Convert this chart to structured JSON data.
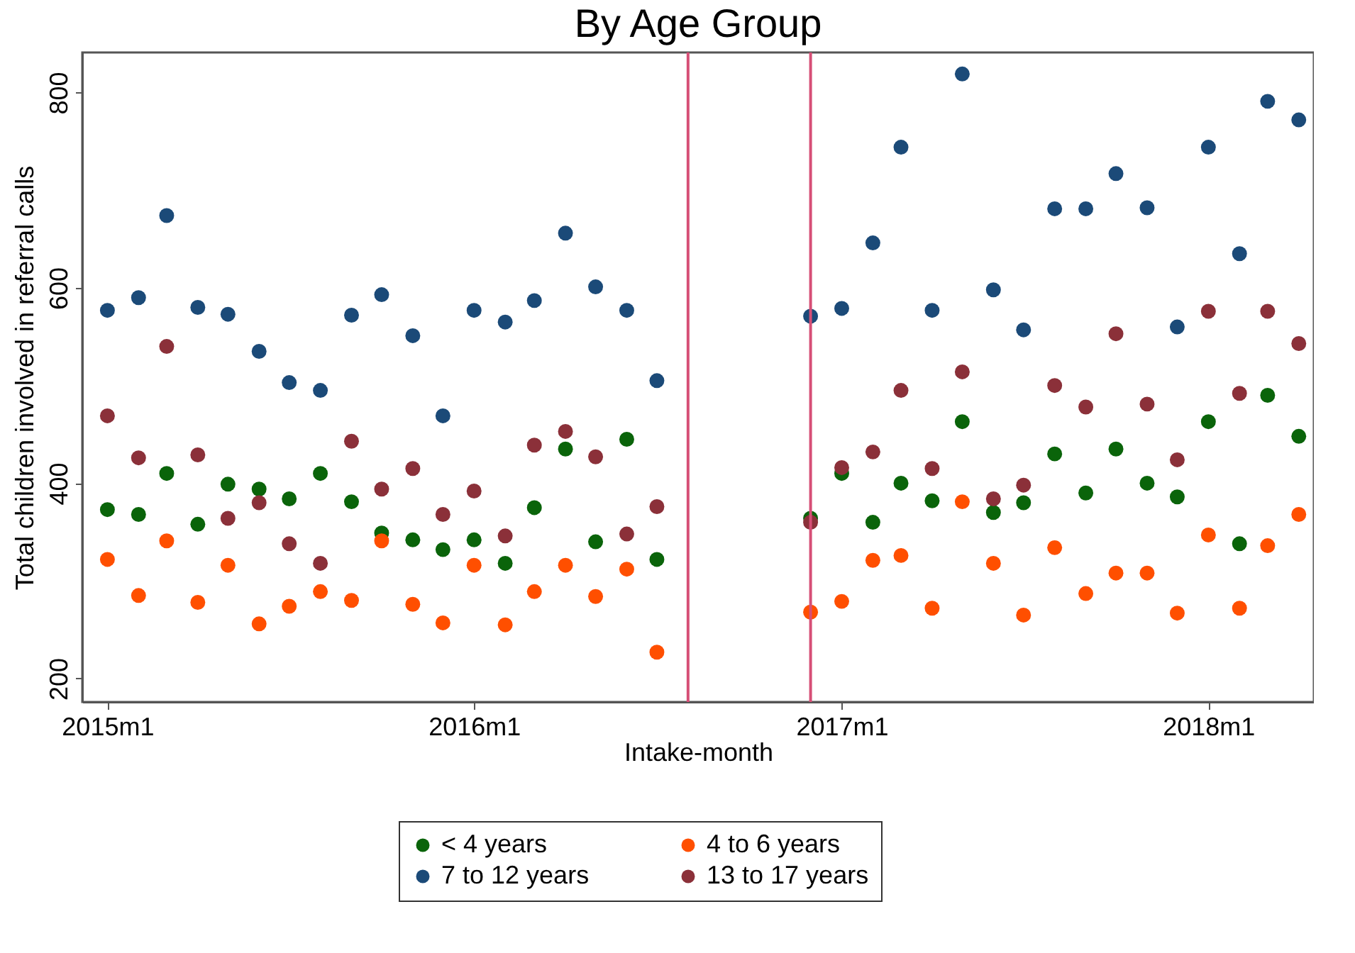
{
  "chart_data": {
    "type": "scatter",
    "title": "By Age Group",
    "xlabel": "Intake-month",
    "ylabel": "Total children involved in referral calls",
    "x": [
      "2015-01",
      "2015-02",
      "2015-03",
      "2015-04",
      "2015-05",
      "2015-06",
      "2015-07",
      "2015-08",
      "2015-09",
      "2015-10",
      "2015-11",
      "2015-12",
      "2016-01",
      "2016-02",
      "2016-03",
      "2016-04",
      "2016-05",
      "2016-06",
      "2016-07",
      "2016-12",
      "2017-01",
      "2017-02",
      "2017-03",
      "2017-04",
      "2017-05",
      "2017-06",
      "2017-07",
      "2017-08",
      "2017-09",
      "2017-10",
      "2017-11",
      "2017-12",
      "2018-01",
      "2018-02",
      "2018-03",
      "2018-04"
    ],
    "series": [
      {
        "name": "< 4 years",
        "color": "#0a640a",
        "values": [
          373,
          368,
          410,
          358,
          399,
          394,
          384,
          410,
          381,
          349,
          342,
          332,
          342,
          318,
          375,
          435,
          340,
          445,
          322,
          364,
          410,
          360,
          400,
          382,
          463,
          370,
          380,
          430,
          390,
          435,
          400,
          386,
          463,
          338,
          490,
          448
        ]
      },
      {
        "name": "4 to 6 years",
        "color": "#ff4f00",
        "values": [
          322,
          285,
          341,
          278,
          316,
          256,
          274,
          289,
          280,
          341,
          276,
          257,
          316,
          255,
          289,
          316,
          284,
          312,
          227,
          268,
          279,
          321,
          326,
          272,
          381,
          318,
          265,
          334,
          287,
          308,
          308,
          267,
          347,
          272,
          336,
          368
        ]
      },
      {
        "name": "7 to 12 years",
        "color": "#1b4a78",
        "values": [
          577,
          590,
          674,
          580,
          573,
          535,
          503,
          495,
          572,
          593,
          551,
          469,
          577,
          565,
          587,
          656,
          601,
          577,
          505,
          571,
          579,
          646,
          744,
          577,
          819,
          598,
          557,
          681,
          681,
          717,
          682,
          560,
          744,
          635,
          791,
          772
        ]
      },
      {
        "name": "13 to 17 years",
        "color": "#8b3039",
        "values": [
          469,
          426,
          540,
          429,
          364,
          380,
          338,
          318,
          443,
          394,
          415,
          368,
          392,
          346,
          439,
          453,
          427,
          348,
          376,
          360,
          416,
          432,
          495,
          415,
          514,
          384,
          398,
          500,
          478,
          553,
          481,
          424,
          576,
          492,
          576,
          543
        ]
      }
    ],
    "xlim": [
      "2014-12-07",
      "2018-04-16"
    ],
    "xticks": [
      {
        "value": "2015-01",
        "label": "2015m1"
      },
      {
        "value": "2016-01",
        "label": "2016m1"
      },
      {
        "value": "2017-01",
        "label": "2017m1"
      },
      {
        "value": "2018-01",
        "label": "2018m1"
      }
    ],
    "ylim": [
      176,
      841
    ],
    "yticks": [
      200,
      400,
      600,
      800
    ],
    "ref_lines": [
      {
        "axis": "x",
        "value": "2016-08",
        "color": "#d64f76"
      },
      {
        "axis": "x",
        "value": "2016-12",
        "color": "#d64f76"
      }
    ],
    "grid": false,
    "legend": "bottom",
    "marker": "circle"
  }
}
